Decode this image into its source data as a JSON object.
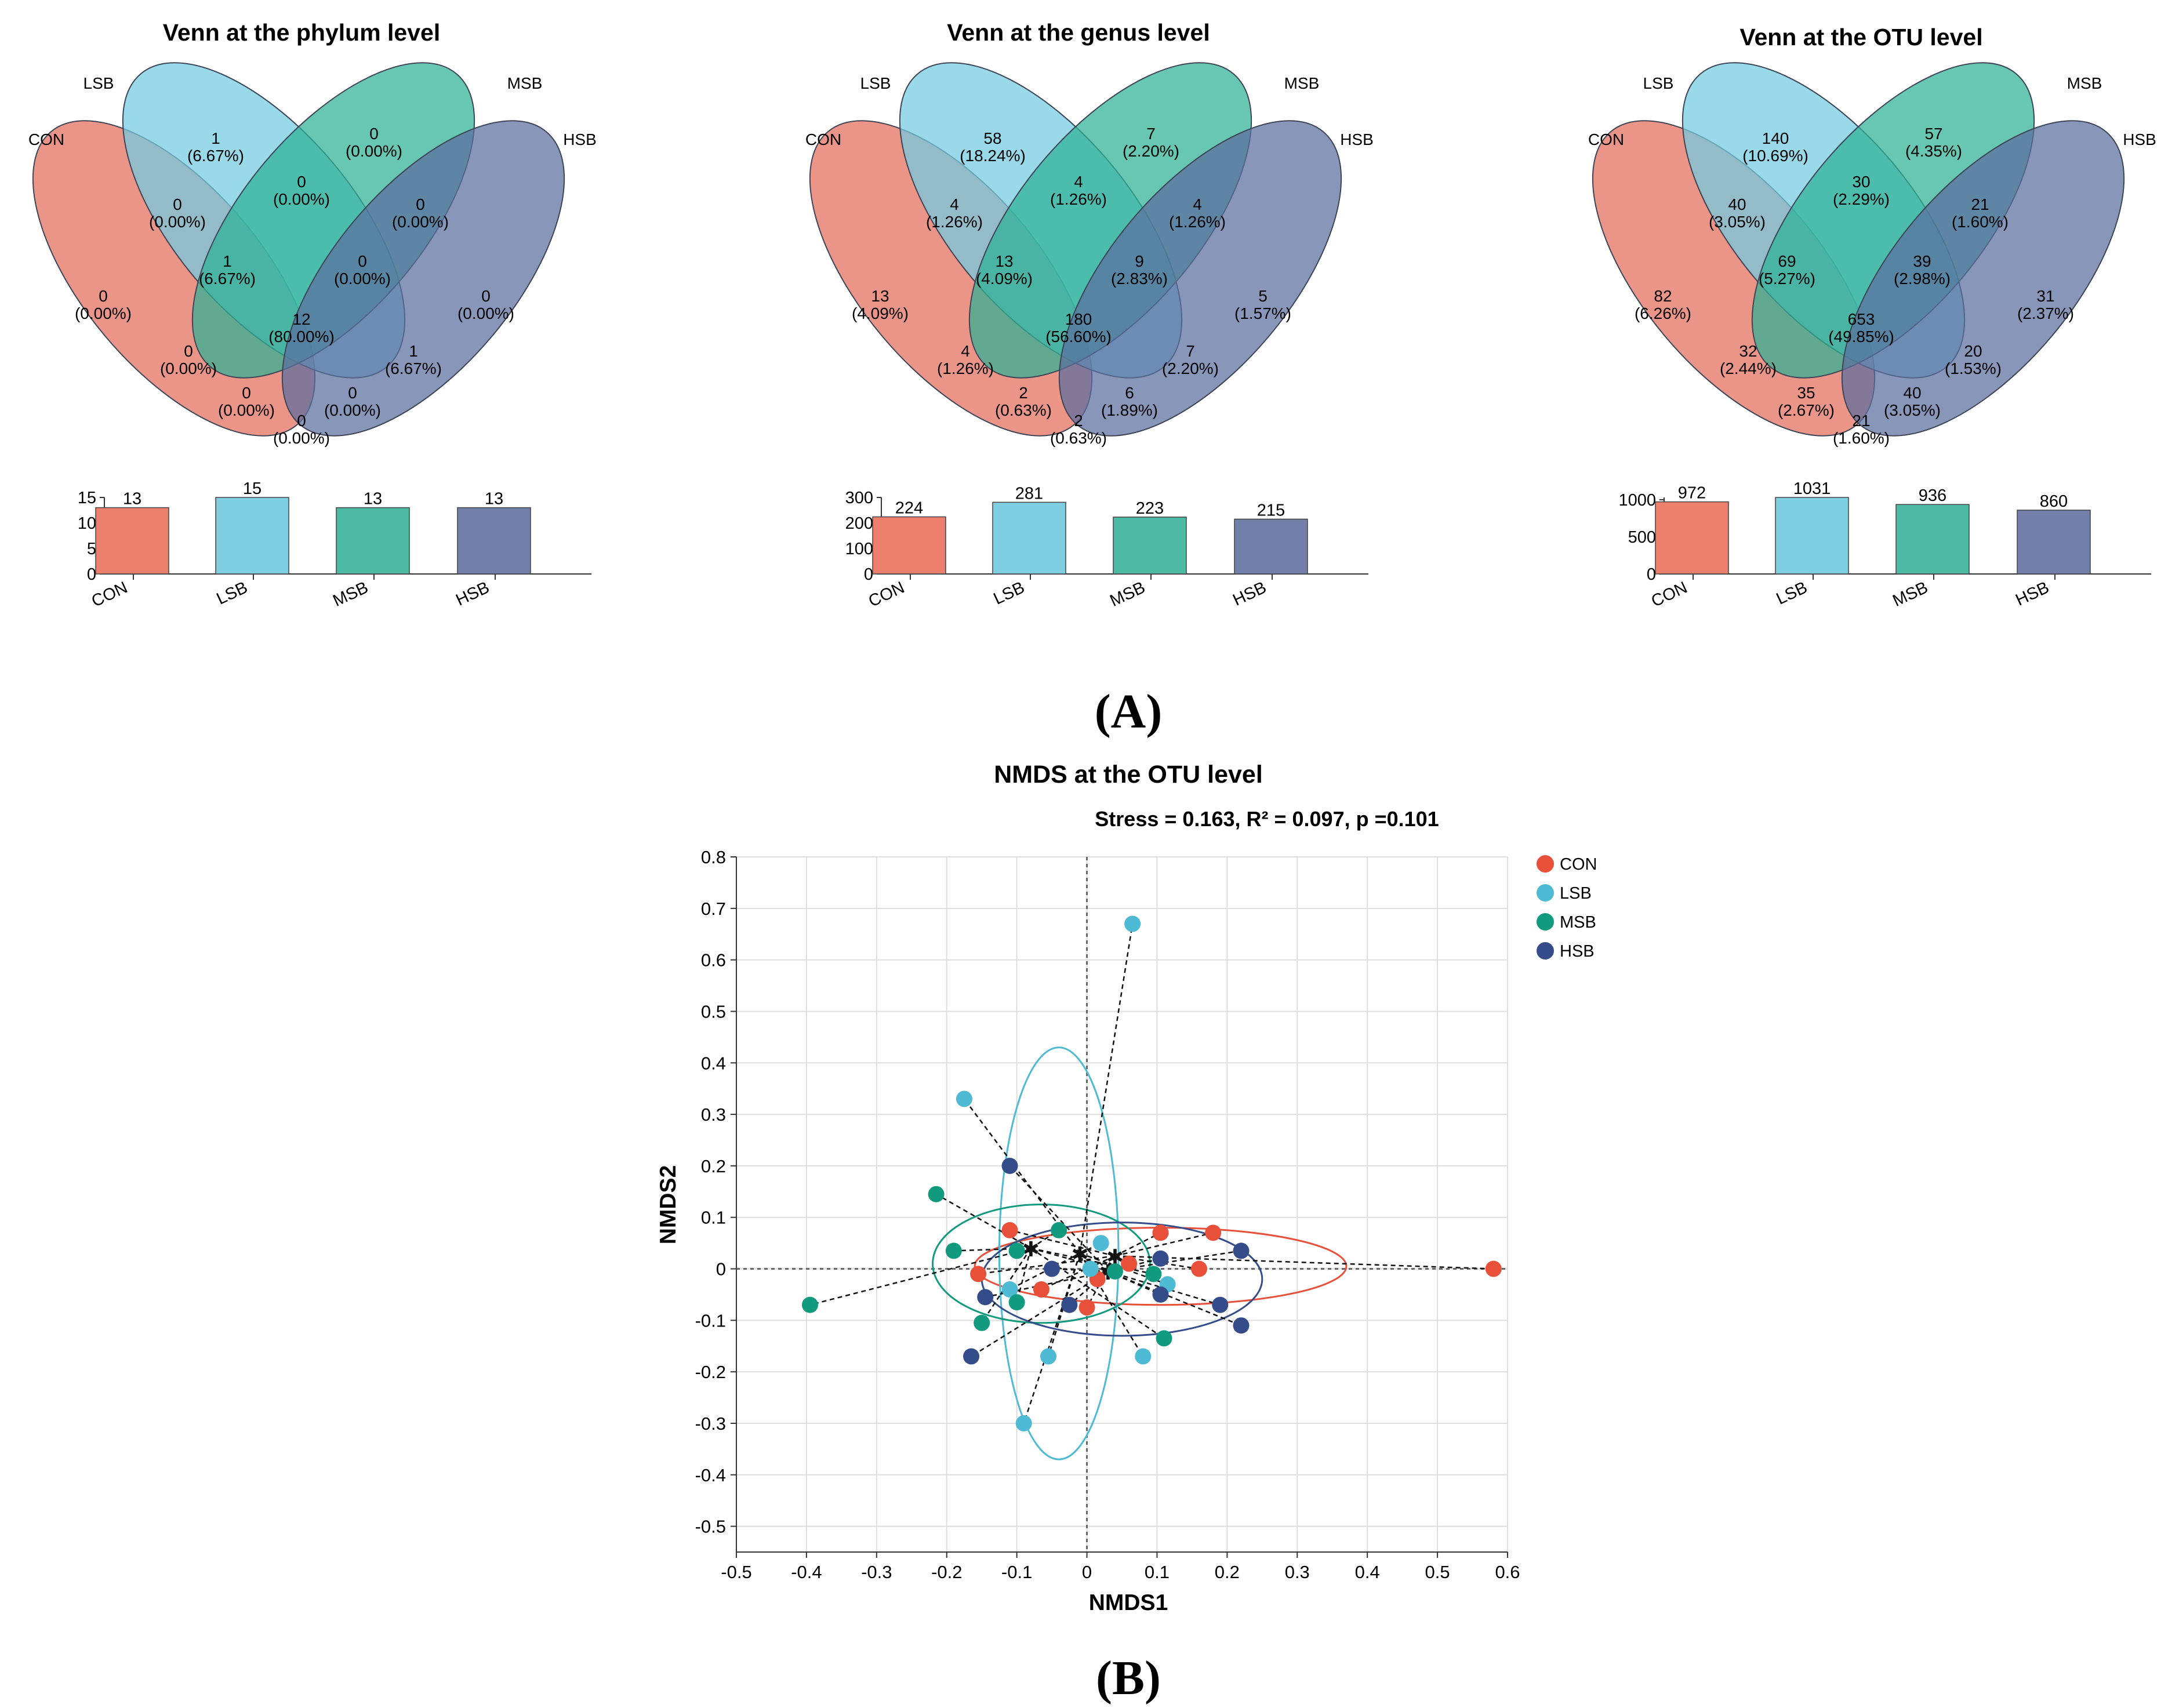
{
  "colors": {
    "CON": "#e8503a",
    "LSB": "#4fbad4",
    "MSB": "#119a7e",
    "HSB": "#344c8a",
    "venn_CON": "#e36b5a",
    "venn_LSB": "#72cbe0",
    "venn_MSB": "#2eb295",
    "venn_HSB": "#5a6d9e",
    "bar_CON": "#ed7f6f",
    "bar_LSB": "#7fcfe1",
    "bar_MSB": "#4cbaa4",
    "bar_HSB": "#7280a9"
  },
  "panel_labels": {
    "a": "(A)",
    "b": "(B)"
  },
  "chart_data": [
    {
      "type": "venn",
      "title": "Venn at the phylum level",
      "sets": [
        "CON",
        "LSB",
        "MSB",
        "HSB"
      ],
      "regions": {
        "CON_only": [
          "0",
          "(0.00%)"
        ],
        "LSB_only": [
          "1",
          "(6.67%)"
        ],
        "MSB_only": [
          "0",
          "(0.00%)"
        ],
        "HSB_only": [
          "0",
          "(0.00%)"
        ],
        "CON_LSB": [
          "0",
          "(0.00%)"
        ],
        "LSB_MSB": [
          "0",
          "(0.00%)"
        ],
        "MSB_HSB": [
          "0",
          "(0.00%)"
        ],
        "CON_LSB_MSB": [
          "1",
          "(6.67%)"
        ],
        "LSB_MSB_HSB": [
          "0",
          "(0.00%)"
        ],
        "ALL": [
          "12",
          "(80.00%)"
        ],
        "CON_MSB": [
          "0",
          "(0.00%)"
        ],
        "LSB_HSB": [
          "1",
          "(6.67%)"
        ],
        "CON_MSB_HSB": [
          "0",
          "(0.00%)"
        ],
        "CON_LSB_HSB": [
          "0",
          "(0.00%)"
        ],
        "CON_HSB": [
          "0",
          "(0.00%)"
        ]
      },
      "bar": {
        "type": "bar",
        "categories": [
          "CON",
          "LSB",
          "MSB",
          "HSB"
        ],
        "values": [
          13,
          15,
          13,
          13
        ],
        "labels": [
          "13",
          "15",
          "13",
          "13"
        ],
        "ylim": [
          0,
          15
        ],
        "yticks": [
          "0",
          "5",
          "10",
          "15"
        ]
      }
    },
    {
      "type": "venn",
      "title": "Venn at the genus level",
      "sets": [
        "CON",
        "LSB",
        "MSB",
        "HSB"
      ],
      "regions": {
        "CON_only": [
          "13",
          "(4.09%)"
        ],
        "LSB_only": [
          "58",
          "(18.24%)"
        ],
        "MSB_only": [
          "7",
          "(2.20%)"
        ],
        "HSB_only": [
          "5",
          "(1.57%)"
        ],
        "CON_LSB": [
          "4",
          "(1.26%)"
        ],
        "LSB_MSB": [
          "4",
          "(1.26%)"
        ],
        "MSB_HSB": [
          "4",
          "(1.26%)"
        ],
        "CON_LSB_MSB": [
          "13",
          "(4.09%)"
        ],
        "LSB_MSB_HSB": [
          "9",
          "(2.83%)"
        ],
        "ALL": [
          "180",
          "(56.60%)"
        ],
        "CON_MSB": [
          "4",
          "(1.26%)"
        ],
        "LSB_HSB": [
          "7",
          "(2.20%)"
        ],
        "CON_MSB_HSB": [
          "2",
          "(0.63%)"
        ],
        "CON_LSB_HSB": [
          "6",
          "(1.89%)"
        ],
        "CON_HSB": [
          "2",
          "(0.63%)"
        ]
      },
      "bar": {
        "type": "bar",
        "categories": [
          "CON",
          "LSB",
          "MSB",
          "HSB"
        ],
        "values": [
          224,
          281,
          223,
          215
        ],
        "labels": [
          "224",
          "281",
          "223",
          "215"
        ],
        "ylim": [
          0,
          300
        ],
        "yticks": [
          "0",
          "100",
          "200",
          "300"
        ]
      }
    },
    {
      "type": "venn",
      "title": "Venn at the OTU level",
      "sets": [
        "CON",
        "LSB",
        "MSB",
        "HSB"
      ],
      "regions": {
        "CON_only": [
          "82",
          "(6.26%)"
        ],
        "LSB_only": [
          "140",
          "(10.69%)"
        ],
        "MSB_only": [
          "57",
          "(4.35%)"
        ],
        "HSB_only": [
          "31",
          "(2.37%)"
        ],
        "CON_LSB": [
          "40",
          "(3.05%)"
        ],
        "LSB_MSB": [
          "30",
          "(2.29%)"
        ],
        "MSB_HSB": [
          "21",
          "(1.60%)"
        ],
        "CON_LSB_MSB": [
          "69",
          "(5.27%)"
        ],
        "LSB_MSB_HSB": [
          "39",
          "(2.98%)"
        ],
        "ALL": [
          "653",
          "(49.85%)"
        ],
        "CON_MSB": [
          "32",
          "(2.44%)"
        ],
        "LSB_HSB": [
          "20",
          "(1.53%)"
        ],
        "CON_MSB_HSB": [
          "35",
          "(2.67%)"
        ],
        "CON_LSB_HSB": [
          "40",
          "(3.05%)"
        ],
        "CON_HSB": [
          "21",
          "(1.60%)"
        ]
      },
      "bar": {
        "type": "bar",
        "categories": [
          "CON",
          "LSB",
          "MSB",
          "HSB"
        ],
        "values": [
          972,
          1031,
          936,
          860
        ],
        "labels": [
          "972",
          "1031",
          "936",
          "860"
        ],
        "ylim": [
          0,
          1031
        ],
        "yticks": [
          "0",
          "500",
          "1000"
        ]
      }
    },
    {
      "type": "scatter",
      "title": "NMDS at the OTU level",
      "subtitle": "Stress = 0.163, R² = 0.097, p =0.101",
      "xlabel": "NMDS1",
      "ylabel": "NMDS2",
      "xlim": [
        -0.5,
        0.6
      ],
      "ylim": [
        -0.55,
        0.8
      ],
      "xticks": [
        -0.5,
        -0.4,
        -0.3,
        -0.2,
        -0.1,
        0,
        0.1,
        0.2,
        0.3,
        0.4,
        0.5,
        0.6
      ],
      "yticks": [
        -0.5,
        -0.4,
        -0.3,
        -0.2,
        -0.1,
        0,
        0.1,
        0.2,
        0.3,
        0.4,
        0.5,
        0.6,
        0.7,
        0.8
      ],
      "xtick_labels": [
        "-0.5",
        "-0.4",
        "-0.3",
        "-0.2",
        "-0.1",
        "0",
        "0.1",
        "0.2",
        "0.3",
        "0.4",
        "0.5",
        "0.6"
      ],
      "ytick_labels": [
        "-0.5",
        "-0.4",
        "-0.3",
        "-0.2",
        "-0.1",
        "0",
        "0.1",
        "0.2",
        "0.3",
        "0.4",
        "0.5",
        "0.6",
        "0.7",
        "0.8"
      ],
      "grid": true,
      "legend": [
        "CON",
        "LSB",
        "MSB",
        "HSB"
      ],
      "series": [
        {
          "name": "CON",
          "centroid": [
            0.04,
            0.025
          ],
          "ellipse": {
            "cx": 0.105,
            "cy": 0.005,
            "rx": 0.265,
            "ry": 0.075
          },
          "points": [
            [
              -0.11,
              0.075
            ],
            [
              -0.155,
              -0.01
            ],
            [
              -0.065,
              -0.04
            ],
            [
              -0.0,
              -0.075
            ],
            [
              0.015,
              -0.02
            ],
            [
              0.06,
              0.01
            ],
            [
              0.105,
              0.07
            ],
            [
              0.16,
              0.0
            ],
            [
              0.18,
              0.07
            ],
            [
              0.58,
              0.0
            ]
          ]
        },
        {
          "name": "LSB",
          "centroid": [
            -0.01,
            0.03
          ],
          "ellipse": {
            "cx": -0.04,
            "cy": 0.03,
            "rx": 0.085,
            "ry": 0.4
          },
          "points": [
            [
              -0.175,
              0.33
            ],
            [
              0.065,
              0.67
            ],
            [
              0.02,
              0.05
            ],
            [
              -0.055,
              -0.17
            ],
            [
              0.08,
              -0.17
            ],
            [
              -0.09,
              -0.3
            ],
            [
              0.005,
              0.0
            ],
            [
              -0.11,
              -0.04
            ],
            [
              0.115,
              -0.03
            ]
          ]
        },
        {
          "name": "MSB",
          "centroid": [
            -0.08,
            0.04
          ],
          "ellipse": {
            "cx": -0.065,
            "cy": 0.01,
            "rx": 0.155,
            "ry": 0.115
          },
          "points": [
            [
              -0.215,
              0.145
            ],
            [
              -0.19,
              0.035
            ],
            [
              -0.1,
              0.035
            ],
            [
              -0.04,
              0.075
            ],
            [
              -0.1,
              -0.065
            ],
            [
              -0.15,
              -0.105
            ],
            [
              -0.395,
              -0.07
            ],
            [
              0.095,
              -0.01
            ],
            [
              0.11,
              -0.135
            ],
            [
              0.04,
              -0.005
            ]
          ]
        },
        {
          "name": "HSB",
          "centroid": [
            0.03,
            -0.005
          ],
          "ellipse": {
            "cx": 0.05,
            "cy": -0.02,
            "rx": 0.2,
            "ry": 0.11
          },
          "points": [
            [
              -0.11,
              0.2
            ],
            [
              -0.145,
              -0.055
            ],
            [
              -0.165,
              -0.17
            ],
            [
              -0.05,
              0.0
            ],
            [
              -0.025,
              -0.07
            ],
            [
              0.105,
              0.02
            ],
            [
              0.105,
              -0.05
            ],
            [
              0.19,
              -0.07
            ],
            [
              0.22,
              0.035
            ],
            [
              0.22,
              -0.11
            ]
          ]
        }
      ]
    }
  ]
}
